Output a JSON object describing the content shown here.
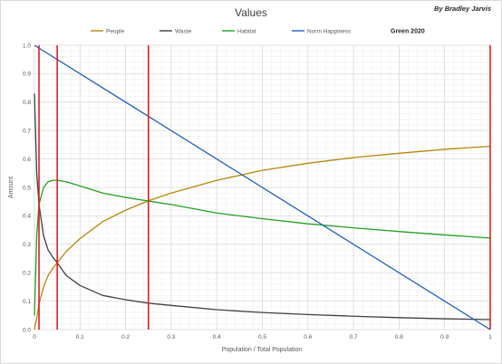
{
  "chart_data": {
    "type": "line",
    "title": "Values",
    "author": "By Bradley Jarvis",
    "xlabel": "Population / Total Population",
    "ylabel": "Amount",
    "xlim": [
      0,
      1
    ],
    "ylim": [
      0,
      1
    ],
    "x_ticks": [
      "0",
      "0.1",
      "0.2",
      "0.3",
      "0.4",
      "0.5",
      "0.6",
      "0.7",
      "0.8",
      "0.9",
      "1"
    ],
    "y_ticks": [
      "0.0",
      "0.1",
      "0.2",
      "0.3",
      "0.4",
      "0.5",
      "0.6",
      "0.7",
      "0.8",
      "0.9",
      "1.0"
    ],
    "grid": true,
    "minor_grid": true,
    "legend_position": "top",
    "series": [
      {
        "name": "People",
        "color": "#b8860b",
        "x": [
          0.0,
          0.005,
          0.01,
          0.02,
          0.03,
          0.04,
          0.05,
          0.07,
          0.1,
          0.15,
          0.2,
          0.25,
          0.3,
          0.4,
          0.5,
          0.6,
          0.7,
          0.8,
          0.9,
          1.0
        ],
        "y": [
          0.0,
          0.04,
          0.09,
          0.15,
          0.19,
          0.215,
          0.235,
          0.275,
          0.32,
          0.38,
          0.42,
          0.453,
          0.48,
          0.525,
          0.56,
          0.585,
          0.605,
          0.62,
          0.634,
          0.645
        ]
      },
      {
        "name": "Waste",
        "color": "#404040",
        "x": [
          0.0,
          0.005,
          0.01,
          0.02,
          0.03,
          0.04,
          0.05,
          0.07,
          0.1,
          0.15,
          0.2,
          0.25,
          0.3,
          0.4,
          0.5,
          0.6,
          0.7,
          0.8,
          0.9,
          1.0
        ],
        "y": [
          0.83,
          0.55,
          0.44,
          0.33,
          0.28,
          0.255,
          0.235,
          0.19,
          0.155,
          0.12,
          0.105,
          0.093,
          0.085,
          0.07,
          0.06,
          0.053,
          0.047,
          0.042,
          0.038,
          0.035
        ]
      },
      {
        "name": "Habitat",
        "color": "#22a022",
        "x": [
          0.0,
          0.005,
          0.01,
          0.02,
          0.03,
          0.04,
          0.05,
          0.07,
          0.1,
          0.15,
          0.2,
          0.25,
          0.3,
          0.4,
          0.5,
          0.6,
          0.7,
          0.8,
          0.9,
          1.0
        ],
        "y": [
          0.05,
          0.33,
          0.44,
          0.5,
          0.52,
          0.525,
          0.525,
          0.52,
          0.505,
          0.48,
          0.465,
          0.452,
          0.44,
          0.41,
          0.39,
          0.372,
          0.358,
          0.345,
          0.333,
          0.322
        ]
      },
      {
        "name": "Norm Happiness",
        "color": "#1f5fbf",
        "x": [
          0.0,
          1.0
        ],
        "y": [
          1.0,
          0.0
        ]
      }
    ],
    "vertical_markers": {
      "color": "#e02020",
      "x": [
        0.01,
        0.05,
        0.25,
        1.0
      ]
    },
    "legend_extra": "Green 2020"
  }
}
